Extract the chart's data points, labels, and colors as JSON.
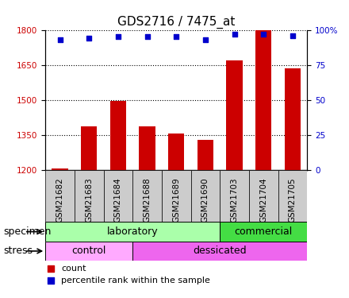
{
  "title": "GDS2716 / 7475_at",
  "samples": [
    "GSM21682",
    "GSM21683",
    "GSM21684",
    "GSM21688",
    "GSM21689",
    "GSM21690",
    "GSM21703",
    "GSM21704",
    "GSM21705"
  ],
  "counts": [
    1205,
    1385,
    1495,
    1385,
    1355,
    1330,
    1670,
    1800,
    1635
  ],
  "percentiles": [
    93,
    94,
    95,
    95,
    95,
    93,
    97,
    97,
    96
  ],
  "ylim_left": [
    1200,
    1800
  ],
  "ylim_right": [
    0,
    100
  ],
  "yticks_left": [
    1200,
    1350,
    1500,
    1650,
    1800
  ],
  "yticks_right": [
    0,
    25,
    50,
    75,
    100
  ],
  "bar_color": "#cc0000",
  "dot_color": "#0000cc",
  "specimen_lab_color": "#aaffaa",
  "specimen_com_color": "#44dd44",
  "stress_ctrl_color": "#ffaaff",
  "stress_des_color": "#ee66ee",
  "xticklabel_bg": "#cccccc",
  "specimen_lab_samples": 6,
  "specimen_com_samples": 3,
  "stress_ctrl_samples": 3,
  "stress_des_samples": 6,
  "specimen_labels": [
    "laboratory",
    "commercial"
  ],
  "stress_labels": [
    "control",
    "dessicated"
  ],
  "axis_label_specimen": "specimen",
  "axis_label_stress": "stress",
  "legend_count": "count",
  "legend_pct": "percentile rank within the sample",
  "title_fontsize": 11,
  "tick_fontsize": 7.5,
  "label_fontsize": 9
}
